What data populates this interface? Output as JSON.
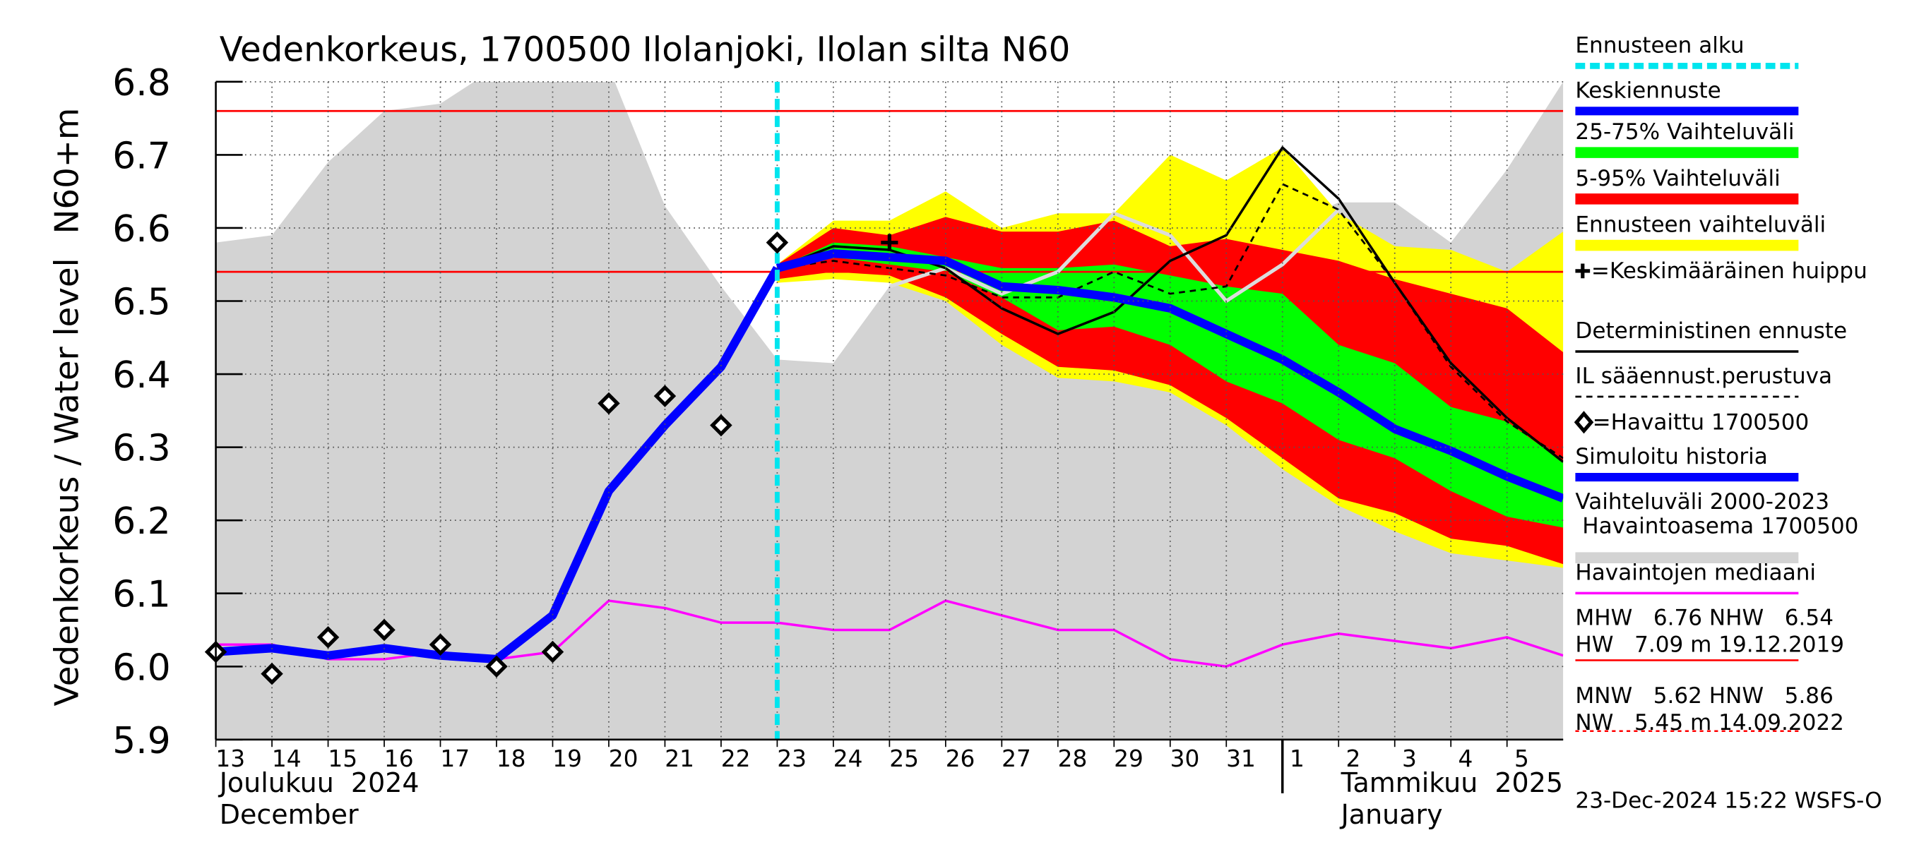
{
  "chart_data": {
    "type": "line",
    "title": "Vedenkorkeus, 1700500 Ilolanjoki, Ilolan silta N60",
    "y_label": "Vedenkorkeus / Water level",
    "y_unit": "N60+m",
    "months": [
      {
        "x": "2024-12-13",
        "lines": [
          "Joulukuu  2024",
          "December"
        ]
      },
      {
        "x": "2025-01-01",
        "lines": [
          "Tammikuu  2025",
          "January"
        ]
      }
    ],
    "timestamp": "23-Dec-2024 15:22 WSFS-O",
    "xlim": [
      "2024-12-13",
      "2025-01-06"
    ],
    "ylim": [
      5.9,
      6.8
    ],
    "yticks": [
      5.9,
      {
        "value": 6,
        "label": "6.0"
      },
      6.1,
      6.2,
      6.3,
      6.4,
      6.5,
      6.6,
      6.7,
      6.8
    ],
    "xticks": [
      {
        "value": "2024-12-13",
        "label": "13"
      },
      {
        "value": "2024-12-14",
        "label": "14"
      },
      {
        "value": "2024-12-15",
        "label": "15"
      },
      {
        "value": "2024-12-16",
        "label": "16"
      },
      {
        "value": "2024-12-17",
        "label": "17"
      },
      {
        "value": "2024-12-18",
        "label": "18"
      },
      {
        "value": "2024-12-19",
        "label": "19"
      },
      {
        "value": "2024-12-20",
        "label": "20"
      },
      {
        "value": "2024-12-21",
        "label": "21"
      },
      {
        "value": "2024-12-22",
        "label": "22"
      },
      {
        "value": "2024-12-23",
        "label": "23"
      },
      {
        "value": "2024-12-24",
        "label": "24"
      },
      {
        "value": "2024-12-25",
        "label": "25"
      },
      {
        "value": "2024-12-26",
        "label": "26"
      },
      {
        "value": "2024-12-27",
        "label": "27"
      },
      {
        "value": "2024-12-28",
        "label": "28"
      },
      {
        "value": "2024-12-29",
        "label": "29"
      },
      {
        "value": "2024-12-30",
        "label": "30"
      },
      {
        "value": "2024-12-31",
        "label": "31"
      },
      {
        "value": "2025-01-01",
        "label": "1"
      },
      {
        "value": "2025-01-02",
        "label": "2"
      },
      {
        "value": "2025-01-03",
        "label": "3"
      },
      {
        "value": "2025-01-04",
        "label": "4"
      },
      {
        "value": "2025-01-05",
        "label": "5"
      }
    ],
    "grid": true,
    "x": [
      "2024-12-13",
      "2024-12-14",
      "2024-12-15",
      "2024-12-16",
      "2024-12-17",
      "2024-12-18",
      "2024-12-19",
      "2024-12-20",
      "2024-12-21",
      "2024-12-22",
      "2024-12-23",
      "2024-12-24",
      "2024-12-25",
      "2024-12-26",
      "2024-12-27",
      "2024-12-28",
      "2024-12-29",
      "2024-12-30",
      "2024-12-31",
      "2025-01-01",
      "2025-01-02",
      "2025-01-03",
      "2025-01-04",
      "2025-01-05",
      "2025-01-06"
    ],
    "bands": [
      {
        "name": [
          "Vaihteluväli 2000-2023",
          " Havaintoasema 1700500"
        ],
        "color": "#d3d3d3",
        "upper": [
          6.58,
          6.59,
          6.69,
          6.76,
          6.77,
          6.82,
          6.82,
          6.82,
          6.63,
          6.52,
          6.42,
          6.415,
          6.52,
          6.57,
          6.57,
          6.6,
          6.6,
          6.6,
          6.6,
          6.6,
          6.635,
          6.635,
          6.58,
          6.68,
          6.8
        ]
      },
      {
        "name": [
          "Ennusteen vaihteluväli"
        ],
        "color": "#ffff00",
        "upper": [
          null,
          null,
          null,
          null,
          null,
          null,
          null,
          null,
          null,
          null,
          6.55,
          6.61,
          6.61,
          6.65,
          6.6,
          6.62,
          6.62,
          6.7,
          6.665,
          6.71,
          6.62,
          6.575,
          6.57,
          6.54,
          6.595
        ],
        "lower": [
          null,
          null,
          null,
          null,
          null,
          null,
          null,
          null,
          null,
          null,
          6.525,
          6.53,
          6.525,
          6.5,
          6.44,
          6.395,
          6.39,
          6.375,
          6.33,
          6.27,
          6.22,
          6.185,
          6.155,
          6.145,
          6.135
        ]
      },
      {
        "name": [
          "5-95% Vaihteluväli"
        ],
        "color": "#ff0000",
        "upper": [
          null,
          null,
          null,
          null,
          null,
          null,
          null,
          null,
          null,
          null,
          6.55,
          6.6,
          6.59,
          6.615,
          6.595,
          6.595,
          6.61,
          6.575,
          6.585,
          6.57,
          6.555,
          6.53,
          6.51,
          6.49,
          6.43
        ],
        "lower": [
          null,
          null,
          null,
          null,
          null,
          null,
          null,
          null,
          null,
          null,
          6.53,
          6.54,
          6.535,
          6.505,
          6.455,
          6.41,
          6.405,
          6.385,
          6.34,
          6.285,
          6.23,
          6.21,
          6.175,
          6.165,
          6.14
        ]
      },
      {
        "name": [
          "25-75% Vaihteluväli"
        ],
        "color": "#00ff00",
        "upper": [
          null,
          null,
          null,
          null,
          null,
          null,
          null,
          null,
          null,
          null,
          6.545,
          6.58,
          6.575,
          6.56,
          6.545,
          6.545,
          6.55,
          6.535,
          6.52,
          6.51,
          6.44,
          6.415,
          6.355,
          6.335,
          6.28
        ],
        "lower": [
          null,
          null,
          null,
          null,
          null,
          null,
          null,
          null,
          null,
          null,
          6.54,
          6.56,
          6.55,
          6.54,
          6.505,
          6.46,
          6.465,
          6.44,
          6.39,
          6.36,
          6.31,
          6.285,
          6.24,
          6.205,
          6.19
        ]
      }
    ],
    "hlines": [
      {
        "value": 6.76,
        "color": "#ff0000"
      },
      {
        "value": 6.54,
        "color": "#ff0000"
      }
    ],
    "forecast_start": {
      "name": "Ennusteen alku",
      "x": "2024-12-23",
      "color": "#00e5ee"
    },
    "series": [
      {
        "color": "#dcdcdc",
        "width": 3,
        "values": [
          null,
          null,
          null,
          null,
          null,
          null,
          null,
          null,
          null,
          null,
          null,
          null,
          6.52,
          6.545,
          6.51,
          6.54,
          6.62,
          6.59,
          6.5,
          6.55,
          6.625,
          null,
          null,
          null,
          null
        ]
      },
      {
        "name": "Havaintojen mediaani",
        "color": "#ff00ff",
        "width": 2,
        "values": [
          6.03,
          6.03,
          6.01,
          6.01,
          6.02,
          6.01,
          6.02,
          6.09,
          6.08,
          6.06,
          6.06,
          6.05,
          6.05,
          6.09,
          6.07,
          6.05,
          6.05,
          6.01,
          6.0,
          6.03,
          6.045,
          6.035,
          6.025,
          6.04,
          6.015
        ]
      },
      {
        "name": "IL sääennust.perustuva",
        "color": "#000000",
        "width": 1.6,
        "dash": "5,4",
        "values": [
          null,
          null,
          null,
          null,
          null,
          null,
          null,
          null,
          null,
          null,
          6.545,
          6.555,
          6.545,
          6.535,
          6.505,
          6.505,
          6.54,
          6.51,
          6.52,
          6.66,
          6.625,
          6.525,
          6.41,
          6.335,
          6.285
        ]
      },
      {
        "name": "Deterministinen ennuste",
        "color": "#000000",
        "width": 2,
        "values": [
          null,
          null,
          null,
          null,
          null,
          null,
          null,
          null,
          null,
          null,
          6.545,
          6.575,
          6.57,
          6.545,
          6.49,
          6.455,
          6.485,
          6.555,
          6.59,
          6.71,
          6.64,
          6.525,
          6.415,
          6.34,
          6.28
        ]
      },
      {
        "name": "Simuloitu historia",
        "color": "#0000ff",
        "width": 7,
        "values": [
          6.02,
          6.025,
          6.015,
          6.025,
          6.015,
          6.01,
          6.07,
          6.24,
          6.33,
          6.41,
          6.545,
          null,
          null,
          null,
          null,
          null,
          null,
          null,
          null,
          null,
          null,
          null,
          null,
          null,
          null
        ]
      },
      {
        "name": "Keskiennuste",
        "color": "#0000ff",
        "width": 7,
        "values": [
          null,
          null,
          null,
          null,
          null,
          null,
          null,
          null,
          null,
          null,
          6.545,
          6.565,
          6.56,
          6.555,
          6.52,
          6.515,
          6.505,
          6.49,
          6.455,
          6.42,
          6.375,
          6.325,
          6.295,
          6.26,
          6.23
        ]
      }
    ],
    "observed": {
      "name": "=Havaittu 1700500",
      "values": [
        6.02,
        5.99,
        6.04,
        6.05,
        6.03,
        6.0,
        6.02,
        6.36,
        6.37,
        6.33,
        6.58,
        null,
        null,
        null,
        null,
        null,
        null,
        null,
        null,
        null,
        null,
        null,
        null,
        null,
        null
      ]
    },
    "peak": {
      "name": "=Keskimääräinen huippu",
      "x": "2024-12-25",
      "value": 6.58
    },
    "stats": [
      {
        "lines": [
          "MHW   6.76 NHW   6.54",
          "HW   7.09 m 19.12.2019"
        ],
        "color": "#ff0000",
        "dash": false
      },
      {
        "lines": [
          "MNW   5.62 HNW   5.86",
          "NW   5.45 m 14.09.2022"
        ],
        "color": "#ff0000",
        "dash": true
      }
    ]
  }
}
